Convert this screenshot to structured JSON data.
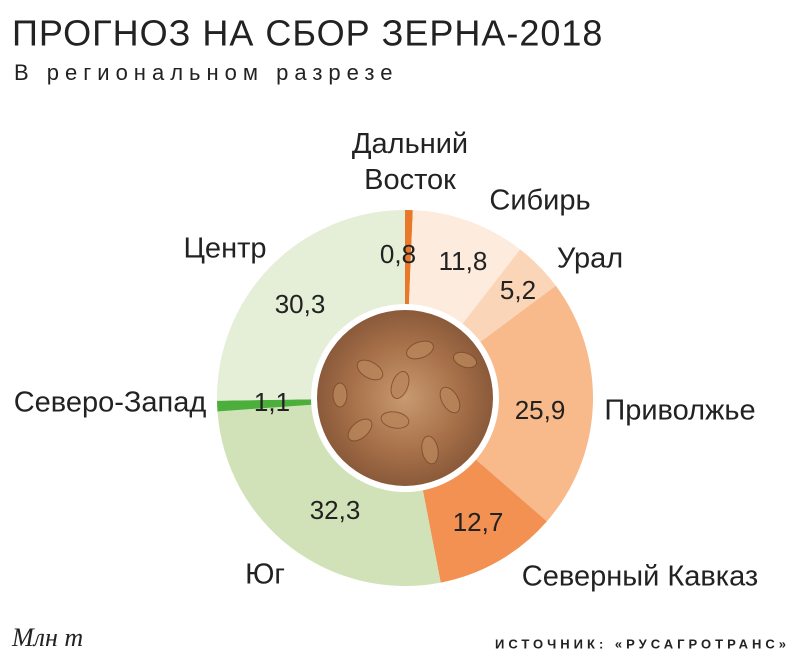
{
  "chart_data": {
    "type": "donut",
    "title": "ПРОГНОЗ НА СБОР ЗЕРНА-2018",
    "subtitle": "В региональном разрезе",
    "categories": [
      "Дальний Восток",
      "Сибирь",
      "Урал",
      "Приволжье",
      "Северный Кавказ",
      "Юг",
      "Северо-Запад",
      "Центр"
    ],
    "values": [
      0.8,
      11.8,
      5.2,
      25.9,
      12.7,
      32.3,
      1.1,
      30.3
    ],
    "value_labels": [
      "0,8",
      "11,8",
      "5,2",
      "25,9",
      "12,7",
      "32,3",
      "1,1",
      "30,3"
    ],
    "colors": [
      "#e8782a",
      "#fdebde",
      "#fbd5b8",
      "#f8b98b",
      "#f29152",
      "#d1e2b8",
      "#4cae3b",
      "#e5eed6"
    ],
    "unit": "Млн т",
    "source": "ИСТОЧНИК: «РУСАГРОТРАНС»"
  }
}
